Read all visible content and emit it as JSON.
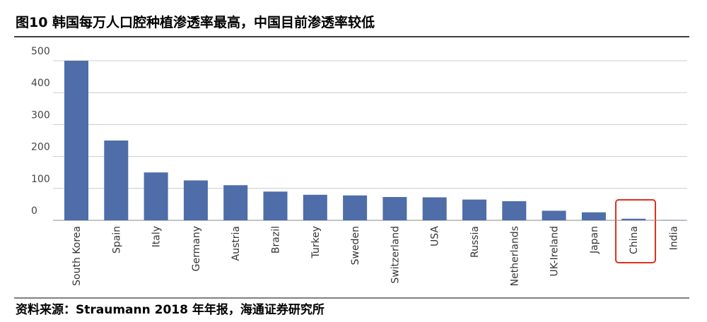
{
  "chart_data": {
    "type": "bar",
    "title": "图10 韩国每万人口腔种植渗透率最高，中国目前渗透率较低",
    "source": "资料来源：Straumann 2018 年年报，海通证券研究所",
    "categories": [
      "South Korea",
      "Spain",
      "Italy",
      "Germany",
      "Austria",
      "Brazil",
      "Turkey",
      "Sweden",
      "Switzerland",
      "USA",
      "Russia",
      "Netherlands",
      "UK-Ireland",
      "Japan",
      "China",
      "India"
    ],
    "values": [
      500,
      250,
      150,
      125,
      110,
      90,
      80,
      78,
      73,
      72,
      65,
      60,
      30,
      25,
      5,
      1
    ],
    "color": "#4e6da9",
    "ylim": [
      0,
      500
    ],
    "yticks": [
      0,
      100,
      200,
      300,
      400,
      500
    ],
    "grid": true
  }
}
